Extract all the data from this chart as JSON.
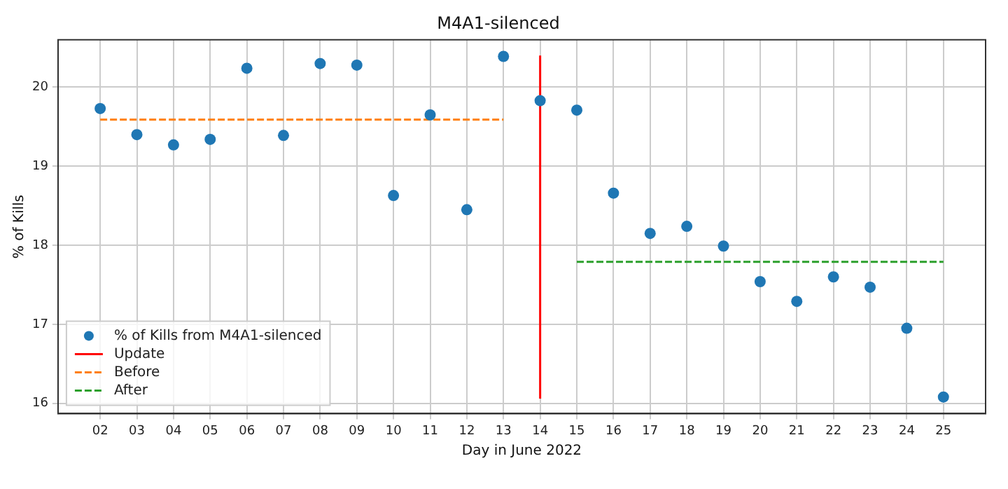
{
  "chart_data": {
    "type": "scatter",
    "title": "M4A1-silenced",
    "xlabel": "Day in June 2022",
    "ylabel": "% of Kills",
    "xlim": [
      0.85,
      26.15
    ],
    "xticks": [
      {
        "value": 2,
        "label": "02"
      },
      {
        "value": 3,
        "label": "03"
      },
      {
        "value": 4,
        "label": "04"
      },
      {
        "value": 5,
        "label": "05"
      },
      {
        "value": 6,
        "label": "06"
      },
      {
        "value": 7,
        "label": "07"
      },
      {
        "value": 8,
        "label": "08"
      },
      {
        "value": 9,
        "label": "09"
      },
      10,
      11,
      12,
      13,
      14,
      15,
      16,
      17,
      18,
      19,
      20,
      21,
      22,
      23,
      24,
      25
    ],
    "ylim": [
      15.87,
      20.6
    ],
    "yticks": [
      16,
      17,
      18,
      19,
      20
    ],
    "grid": true,
    "legend": "bottom left",
    "series": [
      {
        "name": "% of Kills from M4A1-silenced",
        "color": "#1f77b4",
        "marker": "circle",
        "x": [
          2,
          3,
          4,
          5,
          6,
          7,
          8,
          9,
          10,
          11,
          12,
          13,
          14,
          15,
          16,
          17,
          18,
          19,
          20,
          21,
          22,
          23,
          24,
          25
        ],
        "values": [
          19.73,
          19.4,
          19.27,
          19.34,
          20.24,
          19.39,
          20.3,
          20.28,
          18.63,
          19.65,
          18.45,
          20.39,
          19.83,
          19.71,
          18.66,
          18.15,
          18.24,
          17.99,
          17.54,
          17.29,
          17.6,
          17.47,
          16.95,
          16.08
        ]
      },
      {
        "name": "Update",
        "type": "line",
        "color": "#ff0000",
        "line_style": "solid",
        "marker": "none",
        "x": [
          14,
          14
        ],
        "values": [
          16.06,
          20.4
        ]
      },
      {
        "name": "Before",
        "type": "line",
        "color": "#ff7f0e",
        "line_style": "dashed",
        "marker": "none",
        "x": [
          2,
          13
        ],
        "values": [
          19.59,
          19.59
        ]
      },
      {
        "name": "After",
        "type": "line",
        "color": "#2ca02c",
        "line_style": "dashed",
        "marker": "none",
        "x": [
          15,
          25
        ],
        "values": [
          17.79,
          17.79
        ]
      }
    ]
  }
}
